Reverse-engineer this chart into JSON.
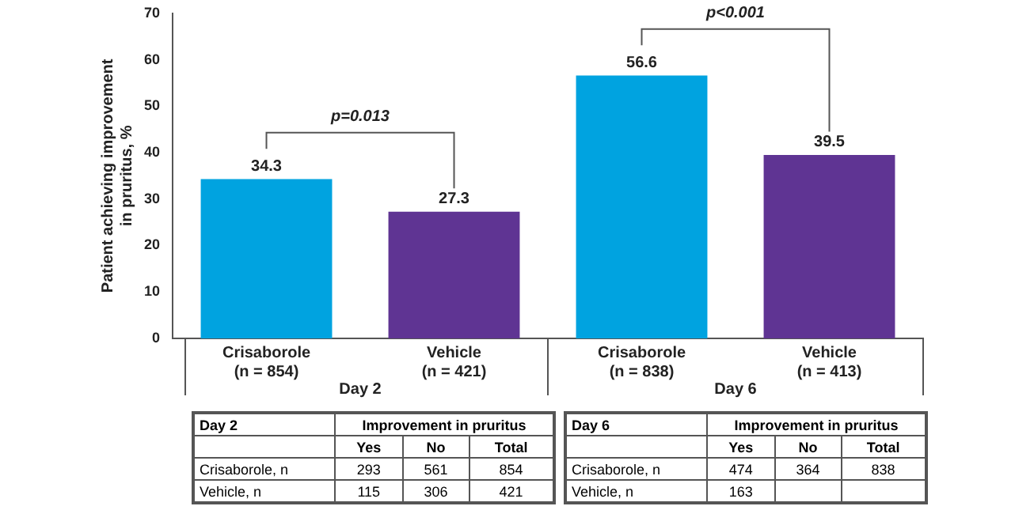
{
  "chart_data": {
    "type": "bar",
    "ylabel": "Patient achieving improvement in pruritus, %",
    "categories": [
      "Crisaborole (n = 854)",
      "Vehicle (n = 421)",
      "Crisaborole (n = 838)",
      "Vehicle (n = 413)"
    ],
    "values": [
      34.3,
      27.3,
      56.6,
      39.5
    ],
    "colors": [
      "#00a3e0",
      "#5f3493",
      "#00a3e0",
      "#5f3493"
    ],
    "ylim": [
      0,
      70
    ],
    "yticks": [
      0,
      10,
      20,
      30,
      40,
      50,
      60,
      70
    ],
    "grid": false,
    "legend": false,
    "data_labels": true,
    "annotations": [
      "p=0.013",
      "p<0.001",
      "Day 2",
      "Day 6",
      "Day 2",
      "Improvement in pruritus",
      "Yes",
      "No",
      "Total",
      "Crisaborole, n",
      "293",
      "561",
      "854",
      "Vehicle, n",
      "115",
      "306",
      "421",
      "Day 6",
      "Improvement in pruritus",
      "Yes",
      "No",
      "Total",
      "Crisaborole, n",
      "474",
      "364",
      "838",
      "Vehicle, n",
      "163"
    ]
  }
}
